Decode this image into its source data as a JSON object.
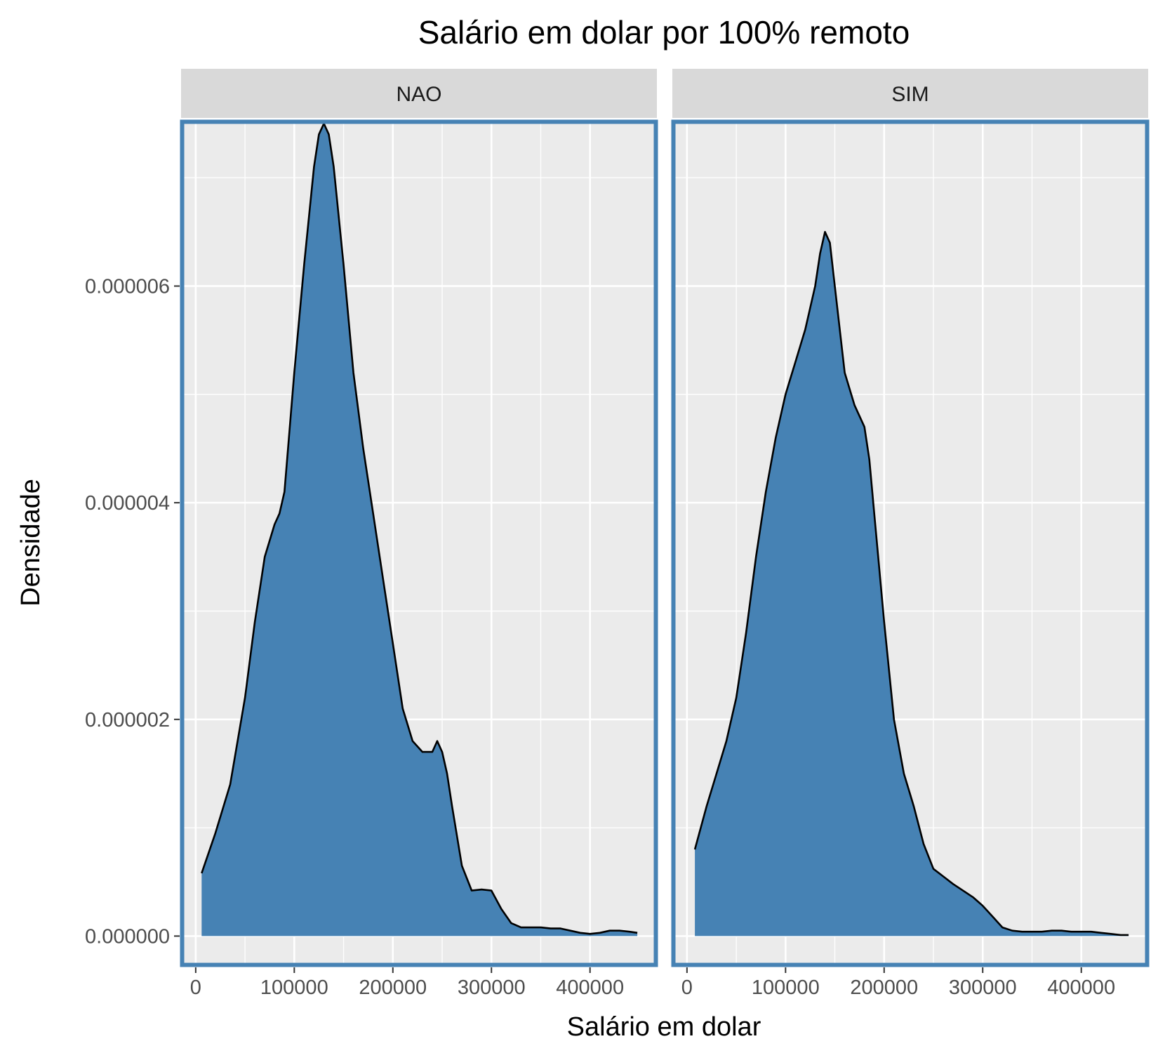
{
  "chart_data": {
    "type": "area",
    "title": "Salário em dolar por 100% remoto",
    "xlabel": "Salário em dolar",
    "ylabel": "Densidade",
    "xlim": [
      -12000,
      465000
    ],
    "ylim": [
      -2.5e-07,
      7.5e-06
    ],
    "x_ticks": [
      0,
      100000,
      200000,
      300000,
      400000
    ],
    "x_tick_labels": [
      "0",
      "100000",
      "200000",
      "300000",
      "400000"
    ],
    "y_ticks": [
      0,
      2e-06,
      4e-06,
      6e-06
    ],
    "y_tick_labels": [
      "0.000000",
      "0.000002",
      "0.000004",
      "0.000006"
    ],
    "grid": true,
    "fill_color": "#4682B4",
    "panel_border_color": "#4682B4",
    "panel_background": "#EBEBEB",
    "strip_background": "#D9D9D9",
    "series": [
      {
        "name": "NAO",
        "x": [
          6000,
          20000,
          35000,
          50000,
          60000,
          70000,
          80000,
          85000,
          90000,
          100000,
          110000,
          120000,
          125000,
          130000,
          135000,
          140000,
          150000,
          160000,
          170000,
          180000,
          190000,
          200000,
          210000,
          220000,
          230000,
          240000,
          245000,
          250000,
          255000,
          260000,
          270000,
          280000,
          290000,
          300000,
          310000,
          320000,
          330000,
          340000,
          350000,
          360000,
          370000,
          380000,
          390000,
          400000,
          410000,
          420000,
          430000,
          440000,
          448000
        ],
        "values": [
          5.8e-07,
          9.5e-07,
          1.4e-06,
          2.2e-06,
          2.9e-06,
          3.5e-06,
          3.8e-06,
          3.9e-06,
          4.1e-06,
          5.2e-06,
          6.2e-06,
          7.1e-06,
          7.4e-06,
          7.5e-06,
          7.4e-06,
          7.1e-06,
          6.2e-06,
          5.2e-06,
          4.5e-06,
          3.9e-06,
          3.3e-06,
          2.7e-06,
          2.1e-06,
          1.8e-06,
          1.7e-06,
          1.7e-06,
          1.8e-06,
          1.7e-06,
          1.5e-06,
          1.2e-06,
          6.5e-07,
          4.2e-07,
          4.3e-07,
          4.2e-07,
          2.5e-07,
          1.2e-07,
          8e-08,
          8e-08,
          8e-08,
          7e-08,
          7e-08,
          5e-08,
          3e-08,
          2e-08,
          3e-08,
          5e-08,
          5e-08,
          4e-08,
          3e-08
        ]
      },
      {
        "name": "SIM",
        "x": [
          8000,
          20000,
          30000,
          40000,
          50000,
          60000,
          70000,
          80000,
          90000,
          100000,
          110000,
          120000,
          130000,
          135000,
          140000,
          145000,
          150000,
          160000,
          170000,
          180000,
          185000,
          190000,
          200000,
          210000,
          220000,
          230000,
          240000,
          250000,
          260000,
          270000,
          280000,
          290000,
          300000,
          310000,
          320000,
          330000,
          340000,
          350000,
          360000,
          370000,
          380000,
          390000,
          400000,
          410000,
          420000,
          430000,
          440000,
          448000
        ],
        "values": [
          8e-07,
          1.2e-06,
          1.5e-06,
          1.8e-06,
          2.2e-06,
          2.8e-06,
          3.5e-06,
          4.1e-06,
          4.6e-06,
          5e-06,
          5.3e-06,
          5.6e-06,
          6e-06,
          6.3e-06,
          6.5e-06,
          6.4e-06,
          6e-06,
          5.2e-06,
          4.9e-06,
          4.7e-06,
          4.4e-06,
          3.9e-06,
          2.9e-06,
          2e-06,
          1.5e-06,
          1.2e-06,
          8.5e-07,
          6.2e-07,
          5.5e-07,
          4.8e-07,
          4.2e-07,
          3.6e-07,
          2.8e-07,
          1.8e-07,
          8e-08,
          5e-08,
          4e-08,
          4e-08,
          4e-08,
          5e-08,
          5e-08,
          4e-08,
          4e-08,
          4e-08,
          3e-08,
          2e-08,
          1e-08,
          1e-08
        ]
      }
    ]
  }
}
